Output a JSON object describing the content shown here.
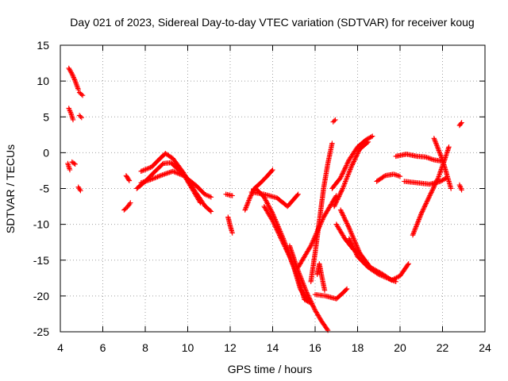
{
  "chart_data": {
    "type": "scatter",
    "title": "Day 021 of 2023, Sidereal Day-to-day VTEC variation (SDTVAR) for receiver koug",
    "xlabel": "GPS time / hours",
    "ylabel": "SDTVAR / TECUs",
    "xlim": [
      4,
      24
    ],
    "ylim": [
      -25,
      15
    ],
    "xticks": [
      4,
      6,
      8,
      10,
      12,
      14,
      16,
      18,
      20,
      22,
      24
    ],
    "yticks": [
      -25,
      -20,
      -15,
      -10,
      -5,
      0,
      5,
      10,
      15
    ],
    "grid": true,
    "marker": "+",
    "color": "#ff0000",
    "segments": [
      {
        "x": [
          4.4,
          4.55,
          4.7,
          4.85
        ],
        "y": [
          11.8,
          11.0,
          10.0,
          8.8
        ]
      },
      {
        "x": [
          4.9,
          5.05
        ],
        "y": [
          8.4,
          8.0
        ]
      },
      {
        "x": [
          4.4,
          4.5,
          4.6
        ],
        "y": [
          6.2,
          5.5,
          4.6
        ]
      },
      {
        "x": [
          4.9,
          5.0
        ],
        "y": [
          5.2,
          4.9
        ]
      },
      {
        "x": [
          4.35,
          4.45
        ],
        "y": [
          -1.5,
          -2.4
        ]
      },
      {
        "x": [
          4.55,
          4.7
        ],
        "y": [
          -1.3,
          -1.6
        ]
      },
      {
        "x": [
          4.85,
          4.95
        ],
        "y": [
          -4.8,
          -5.3
        ]
      },
      {
        "x": [
          7.0,
          7.15,
          7.3
        ],
        "y": [
          -8.0,
          -7.6,
          -7.0
        ]
      },
      {
        "x": [
          7.1,
          7.25
        ],
        "y": [
          -3.2,
          -3.9
        ]
      },
      {
        "x": [
          7.6,
          8.0,
          8.5,
          8.85,
          9.2,
          9.8,
          10.3,
          10.6
        ],
        "y": [
          -5.0,
          -4.0,
          -2.5,
          -1.5,
          -1.4,
          -3.0,
          -5.5,
          -7.0
        ]
      },
      {
        "x": [
          7.8,
          8.3,
          8.7,
          8.95,
          9.3,
          9.8,
          10.3,
          10.8,
          11.1
        ],
        "y": [
          -2.6,
          -2.0,
          -0.8,
          -0.1,
          -0.8,
          -2.8,
          -5.2,
          -7.4,
          -8.2
        ]
      },
      {
        "x": [
          7.8,
          8.3,
          8.8,
          9.3,
          9.8,
          10.4,
          10.8,
          11.1
        ],
        "y": [
          -4.2,
          -3.7,
          -3.1,
          -2.6,
          -3.2,
          -4.6,
          -5.8,
          -6.2
        ]
      },
      {
        "x": [
          11.9,
          12.0,
          12.1
        ],
        "y": [
          -9.0,
          -10.2,
          -11.2
        ]
      },
      {
        "x": [
          11.8,
          12.1
        ],
        "y": [
          -5.8,
          -6.0
        ]
      },
      {
        "x": [
          12.7,
          12.9,
          13.1
        ],
        "y": [
          -8.0,
          -6.5,
          -5.2
        ]
      },
      {
        "x": [
          13.1,
          13.4,
          13.7,
          14.0
        ],
        "y": [
          -5.1,
          -4.3,
          -3.4,
          -2.4
        ]
      },
      {
        "x": [
          13.0,
          13.6,
          14.2,
          14.7,
          15.2
        ],
        "y": [
          -5.5,
          -5.8,
          -6.3,
          -7.5,
          -5.8
        ]
      },
      {
        "x": [
          13.2,
          13.6,
          14.0,
          14.5,
          15.0,
          15.3,
          15.6
        ],
        "y": [
          -5.0,
          -6.2,
          -8.5,
          -12.0,
          -16.0,
          -19.0,
          -20.5
        ]
      },
      {
        "x": [
          13.6,
          14.0,
          14.4,
          14.8,
          15.2,
          15.5,
          15.8
        ],
        "y": [
          -7.5,
          -9.5,
          -12.0,
          -14.5,
          -17.5,
          -20.5,
          -21.0
        ]
      },
      {
        "x": [
          14.8,
          15.2,
          15.6,
          16.0,
          16.3,
          16.6
        ],
        "y": [
          -13.0,
          -16.5,
          -19.5,
          -22.0,
          -23.5,
          -24.8
        ]
      },
      {
        "x": [
          15.2,
          15.5,
          15.8,
          16.1,
          16.4,
          16.7,
          17.0
        ],
        "y": [
          -16.0,
          -14.5,
          -13.0,
          -11.0,
          -9.0,
          -7.5,
          -6.0
        ]
      },
      {
        "x": [
          15.8,
          16.0,
          16.2,
          16.4,
          16.6,
          16.8
        ],
        "y": [
          -18.0,
          -14.0,
          -9.5,
          -5.0,
          -1.5,
          1.3
        ]
      },
      {
        "x": [
          16.1,
          16.2,
          16.35,
          16.45
        ],
        "y": [
          -17.0,
          -15.5,
          -17.8,
          -19.2
        ]
      },
      {
        "x": [
          16.0,
          16.5,
          17.0,
          17.3,
          17.5
        ],
        "y": [
          -19.8,
          -20.0,
          -20.4,
          -19.6,
          -19.0
        ]
      },
      {
        "x": [
          16.85,
          16.95
        ],
        "y": [
          4.3,
          4.6
        ]
      },
      {
        "x": [
          16.8,
          17.2,
          17.6,
          18.0,
          18.4,
          18.7
        ],
        "y": [
          -5.0,
          -3.5,
          -1.0,
          0.8,
          1.8,
          2.3
        ]
      },
      {
        "x": [
          16.9,
          17.3,
          17.7,
          18.1,
          18.5
        ],
        "y": [
          -7.5,
          -5.0,
          -2.0,
          0.5,
          1.5
        ]
      },
      {
        "x": [
          17.0,
          17.4,
          17.8,
          18.1
        ],
        "y": [
          -10.0,
          -12.0,
          -13.5,
          -14.0
        ]
      },
      {
        "x": [
          17.2,
          17.6,
          18.1,
          18.6,
          19.2,
          19.6,
          20.0,
          20.4
        ],
        "y": [
          -8.0,
          -10.5,
          -14.0,
          -16.0,
          -17.0,
          -17.8,
          -17.2,
          -15.5
        ]
      },
      {
        "x": [
          17.6,
          18.0,
          18.5,
          19.0,
          19.4,
          19.8
        ],
        "y": [
          -12.0,
          -14.5,
          -16.0,
          -17.0,
          -17.5,
          -18.0
        ]
      },
      {
        "x": [
          18.9,
          19.3,
          19.7,
          20.0
        ],
        "y": [
          -4.0,
          -3.2,
          -3.0,
          -3.3
        ]
      },
      {
        "x": [
          19.8,
          20.3,
          20.8,
          21.2,
          21.6,
          22.0
        ],
        "y": [
          -0.5,
          -0.2,
          -0.5,
          -0.6,
          -1.0,
          -1.2
        ]
      },
      {
        "x": [
          20.2,
          20.8,
          21.4,
          21.9,
          22.2
        ],
        "y": [
          -4.0,
          -4.2,
          -4.4,
          -4.0,
          -3.5
        ]
      },
      {
        "x": [
          20.6,
          21.0,
          21.4,
          21.8,
          22.1,
          22.3
        ],
        "y": [
          -11.5,
          -8.5,
          -6.0,
          -3.5,
          -1.0,
          0.8
        ]
      },
      {
        "x": [
          21.6,
          21.8,
          22.0,
          22.2,
          22.4
        ],
        "y": [
          2.0,
          0.5,
          -1.0,
          -3.0,
          -5.0
        ]
      },
      {
        "x": [
          22.8,
          22.9
        ],
        "y": [
          3.8,
          4.2
        ]
      },
      {
        "x": [
          22.8,
          22.9
        ],
        "y": [
          -4.5,
          -5.2
        ]
      }
    ]
  }
}
